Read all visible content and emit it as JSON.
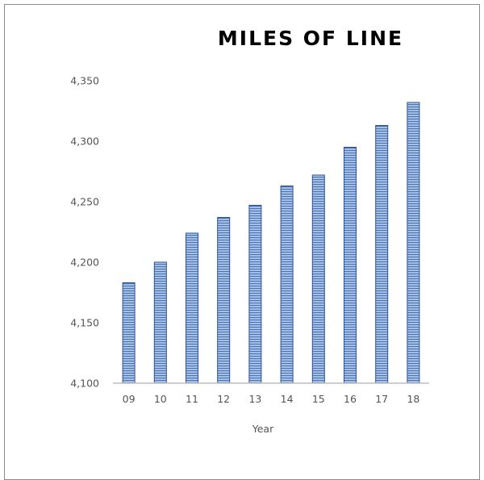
{
  "chart_data": {
    "type": "bar",
    "title": "MILES OF LINE",
    "xlabel": "Year",
    "ylabel": "",
    "categories": [
      "09",
      "10",
      "11",
      "12",
      "13",
      "14",
      "15",
      "16",
      "17",
      "18"
    ],
    "values": [
      4183,
      4200,
      4224,
      4237,
      4247,
      4263,
      4272,
      4295,
      4313,
      4332
    ],
    "ylim": [
      4100,
      4350
    ],
    "yticks": [
      "4,100",
      "4,150",
      "4,200",
      "4,250",
      "4,300",
      "4,350"
    ],
    "ytick_values": [
      4100,
      4150,
      4200,
      4250,
      4300,
      4350
    ],
    "grid": false,
    "legend": "none",
    "colors": {
      "bar_fill": "#aec6e8",
      "bar_stripe": "#4a74b4",
      "bar_border": "#2f528f",
      "axis_line": "#bfbfbf",
      "frame": "#8c8c8c"
    }
  }
}
